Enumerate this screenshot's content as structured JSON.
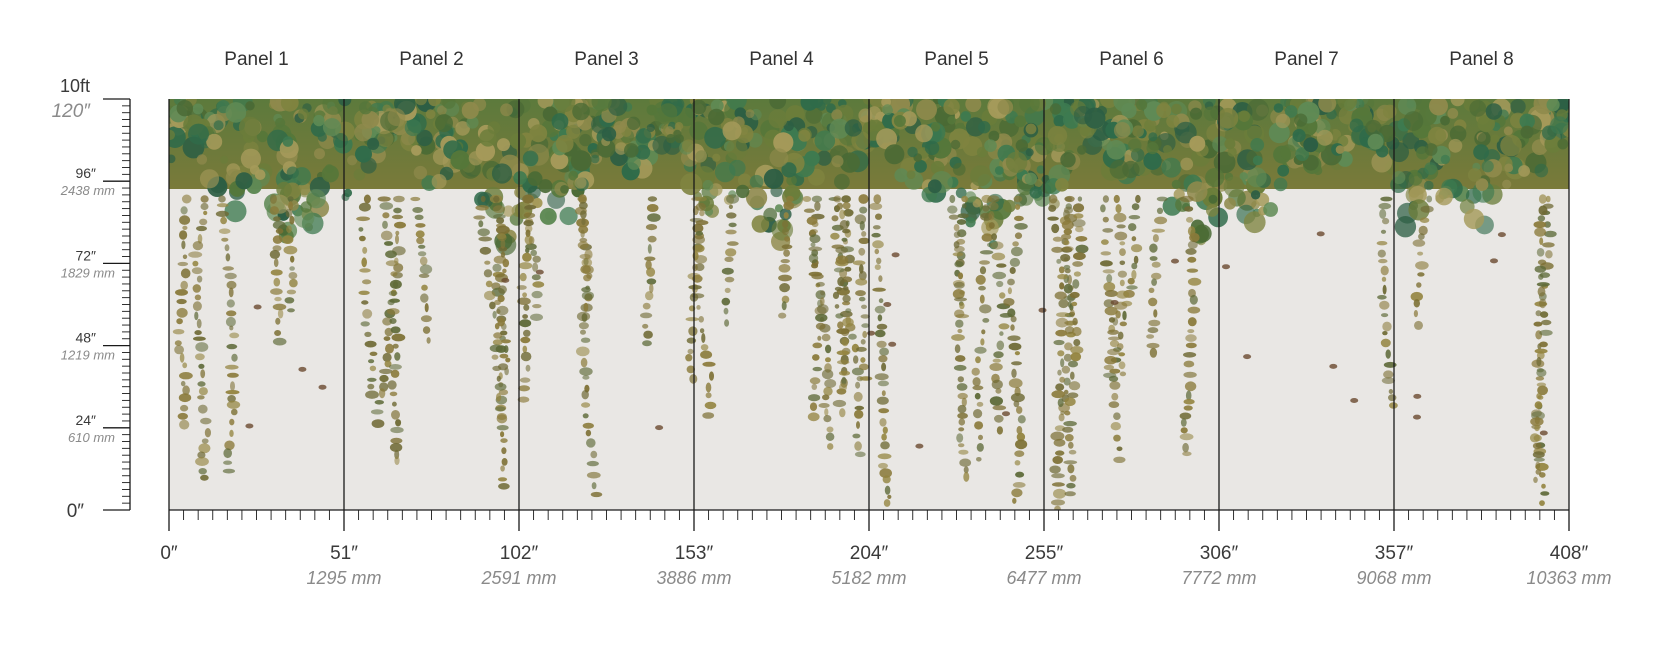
{
  "panels": [
    "Panel 1",
    "Panel 2",
    "Panel 3",
    "Panel 4",
    "Panel 5",
    "Panel 6",
    "Panel 7",
    "Panel 8"
  ],
  "width_marks": [
    {
      "inches": "0″"
    },
    {
      "inches": "51″",
      "mm": "1295 mm"
    },
    {
      "inches": "102″",
      "mm": "2591 mm"
    },
    {
      "inches": "153″",
      "mm": "3886 mm"
    },
    {
      "inches": "204″",
      "mm": "5182 mm"
    },
    {
      "inches": "255″",
      "mm": "6477 mm"
    },
    {
      "inches": "306″",
      "mm": "7772 mm"
    },
    {
      "inches": "357″",
      "mm": "9068 mm"
    },
    {
      "inches": "408″",
      "mm": "10363 mm"
    }
  ],
  "height_label": "10ft",
  "height_marks": [
    {
      "inches": "120″"
    },
    {
      "inches": "96″",
      "mm": "2438 mm"
    },
    {
      "inches": "72″",
      "mm": "1829 mm"
    },
    {
      "inches": "48″",
      "mm": "1219 mm"
    },
    {
      "inches": "24″",
      "mm": "610 mm"
    },
    {
      "inches": "0″"
    }
  ]
}
